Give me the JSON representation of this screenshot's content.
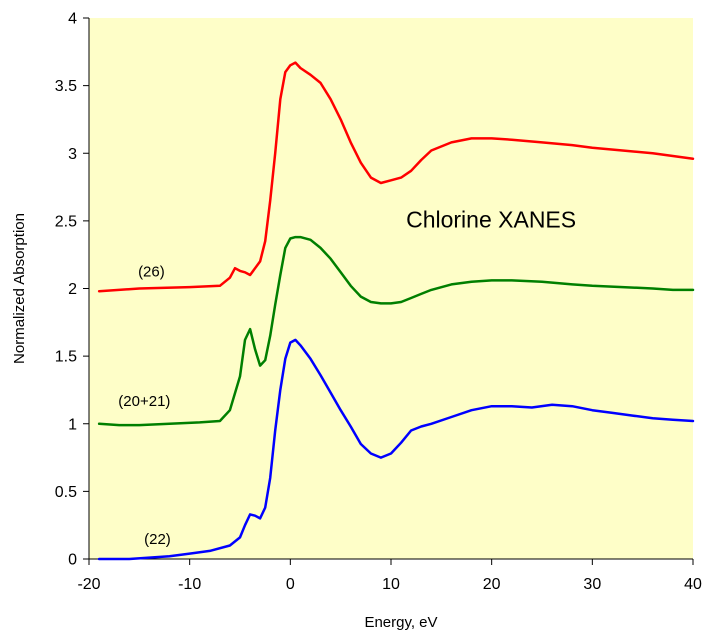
{
  "chart_data": {
    "type": "line",
    "title": "",
    "xlabel": "Energy, eV",
    "ylabel": "Normalized Absorption",
    "xlim": [
      -20,
      40
    ],
    "ylim": [
      0,
      4
    ],
    "xticks": [
      -20,
      -10,
      0,
      10,
      20,
      30,
      40
    ],
    "yticks": [
      0,
      0.5,
      1,
      1.5,
      2,
      2.5,
      3,
      3.5,
      4
    ],
    "xtick_labels": [
      "-20",
      "-10",
      "0",
      "10",
      "20",
      "30",
      "40"
    ],
    "ytick_labels": [
      "0",
      "0.5",
      "1",
      "1.5",
      "2",
      "2.5",
      "3",
      "3.5",
      "4"
    ],
    "grid": false,
    "legend": "none",
    "plot_background": "#fefec8",
    "annotations": {
      "main": "Chlorine XANES",
      "red_label": "(26)",
      "green_label": "(20+21)",
      "blue_label": "(22)"
    },
    "series": [
      {
        "name": "(26)",
        "color": "#ff0000",
        "x": [
          -19,
          -15,
          -10,
          -7,
          -6,
          -5.5,
          -5,
          -4.5,
          -4,
          -3,
          -2.5,
          -2,
          -1.5,
          -1,
          -0.5,
          0,
          0.5,
          1,
          2,
          3,
          4,
          5,
          6,
          7,
          8,
          9,
          10,
          11,
          12,
          13,
          14,
          16,
          18,
          20,
          22,
          25,
          28,
          30,
          33,
          36,
          38,
          40
        ],
        "y": [
          1.98,
          2.0,
          2.01,
          2.02,
          2.08,
          2.15,
          2.13,
          2.12,
          2.1,
          2.2,
          2.35,
          2.65,
          3.0,
          3.4,
          3.6,
          3.65,
          3.67,
          3.63,
          3.58,
          3.52,
          3.4,
          3.25,
          3.08,
          2.93,
          2.82,
          2.78,
          2.8,
          2.82,
          2.87,
          2.95,
          3.02,
          3.08,
          3.11,
          3.11,
          3.1,
          3.08,
          3.06,
          3.04,
          3.02,
          3.0,
          2.98,
          2.96
        ]
      },
      {
        "name": "(20+21)",
        "color": "#007f00",
        "x": [
          -19,
          -17,
          -15,
          -12,
          -9,
          -7,
          -6,
          -5,
          -4.5,
          -4,
          -3.5,
          -3,
          -2.5,
          -2,
          -1.5,
          -1,
          -0.5,
          0,
          0.5,
          1,
          2,
          3,
          4,
          5,
          6,
          7,
          8,
          9,
          10,
          11,
          12,
          13,
          14,
          16,
          18,
          20,
          22,
          25,
          28,
          30,
          33,
          36,
          38,
          40
        ],
        "y": [
          1.0,
          0.99,
          0.99,
          1.0,
          1.01,
          1.02,
          1.1,
          1.35,
          1.62,
          1.7,
          1.55,
          1.43,
          1.47,
          1.65,
          1.88,
          2.1,
          2.3,
          2.37,
          2.38,
          2.38,
          2.36,
          2.3,
          2.22,
          2.12,
          2.02,
          1.94,
          1.9,
          1.89,
          1.89,
          1.9,
          1.93,
          1.96,
          1.99,
          2.03,
          2.05,
          2.06,
          2.06,
          2.05,
          2.03,
          2.02,
          2.01,
          2.0,
          1.99,
          1.99
        ]
      },
      {
        "name": "(22)",
        "color": "#0000ff",
        "x": [
          -19,
          -16,
          -14,
          -12,
          -10,
          -8,
          -6,
          -5,
          -4.5,
          -4,
          -3.5,
          -3,
          -2.5,
          -2,
          -1.5,
          -1,
          -0.5,
          0,
          0.5,
          1,
          2,
          3,
          4,
          5,
          6,
          7,
          8,
          9,
          10,
          11,
          12,
          13,
          14,
          16,
          18,
          20,
          22,
          24,
          26,
          28,
          30,
          32,
          34,
          36,
          38,
          40
        ],
        "y": [
          0.0,
          0.0,
          0.01,
          0.02,
          0.04,
          0.06,
          0.1,
          0.16,
          0.25,
          0.33,
          0.32,
          0.3,
          0.38,
          0.6,
          0.95,
          1.25,
          1.48,
          1.6,
          1.62,
          1.58,
          1.48,
          1.36,
          1.23,
          1.1,
          0.98,
          0.85,
          0.78,
          0.75,
          0.78,
          0.86,
          0.95,
          0.98,
          1.0,
          1.05,
          1.1,
          1.13,
          1.13,
          1.12,
          1.14,
          1.13,
          1.1,
          1.08,
          1.06,
          1.04,
          1.03,
          1.02
        ]
      }
    ]
  }
}
